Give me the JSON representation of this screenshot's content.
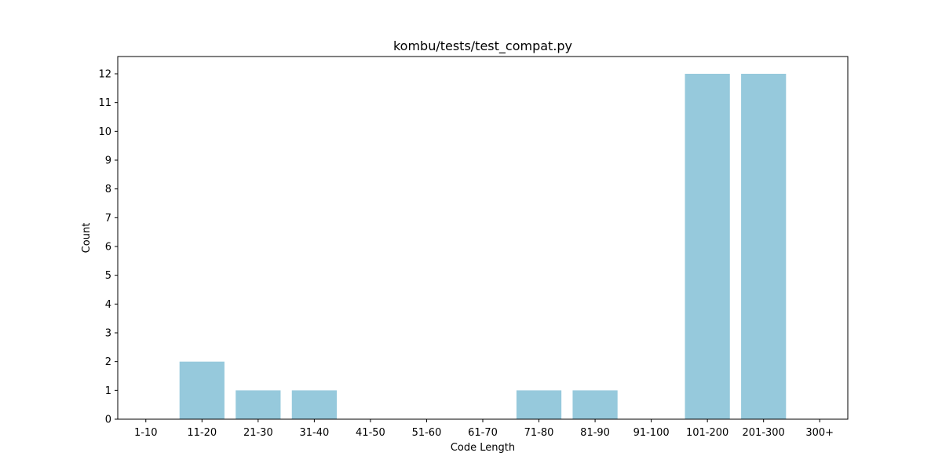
{
  "chart_data": {
    "type": "bar",
    "title": "kombu/tests/test_compat.py",
    "xlabel": "Code Length",
    "ylabel": "Count",
    "categories": [
      "1-10",
      "11-20",
      "21-30",
      "31-40",
      "41-50",
      "51-60",
      "61-70",
      "71-80",
      "81-90",
      "91-100",
      "101-200",
      "201-300",
      "300+"
    ],
    "values": [
      0,
      2,
      1,
      1,
      0,
      0,
      0,
      1,
      1,
      0,
      12,
      12,
      0
    ],
    "ylim": [
      0,
      12.6
    ],
    "yticks": [
      0,
      1,
      2,
      3,
      4,
      5,
      6,
      7,
      8,
      9,
      10,
      11,
      12
    ],
    "grid": false,
    "bar_color": "#96c9dc"
  }
}
